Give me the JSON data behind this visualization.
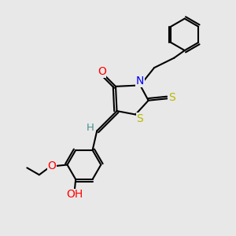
{
  "background_color": "#e8e8e8",
  "atom_colors": {
    "C": "#000000",
    "N": "#0000ff",
    "O": "#ff0000",
    "S": "#b8b800",
    "H": "#4a9090"
  },
  "figsize": [
    3.0,
    3.0
  ],
  "dpi": 100,
  "lw": 1.5,
  "fontsize": 9.5
}
